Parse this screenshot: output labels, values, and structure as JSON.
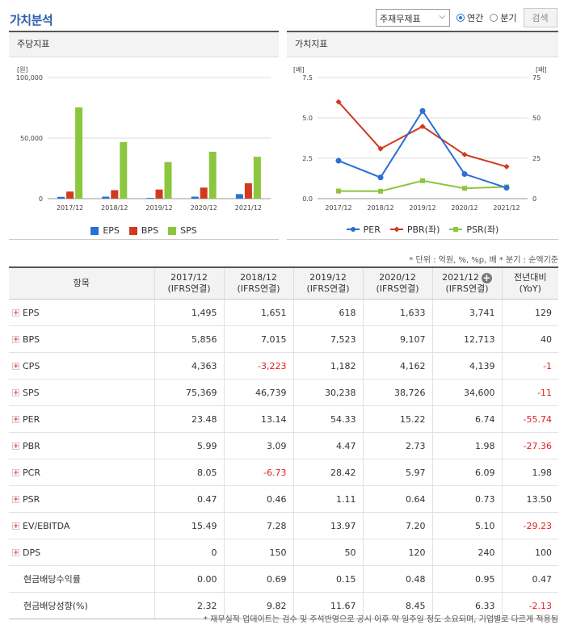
{
  "title": "가치분석",
  "controls": {
    "select_value": "주재무제표",
    "radio_annual": "연간",
    "radio_quarter": "분기",
    "search_label": "검색"
  },
  "left_chart": {
    "heading": "주당지표",
    "unit": "[원]",
    "legend": [
      "EPS",
      "BPS",
      "SPS"
    ]
  },
  "right_chart": {
    "heading": "가치지표",
    "unit_left": "[배]",
    "unit_right": "[배]",
    "legend": [
      "PER",
      "PBR(좌)",
      "PSR(좌)"
    ]
  },
  "colors": {
    "eps": "#2a6fd6",
    "bps": "#d13a1f",
    "sps": "#8cc63f",
    "per": "#2a6fd6",
    "pbr": "#d13a1f",
    "psr": "#8cc63f",
    "title": "#2a5ea8"
  },
  "chart_data": [
    {
      "type": "bar",
      "title": "주당지표",
      "ylabel": "[원]",
      "categories": [
        "2017/12",
        "2018/12",
        "2019/12",
        "2020/12",
        "2021/12"
      ],
      "ylim": [
        0,
        100000
      ],
      "yticks": [
        "100,000",
        "50,000",
        "0"
      ],
      "series": [
        {
          "name": "EPS",
          "values": [
            1495,
            1651,
            618,
            1633,
            3741
          ]
        },
        {
          "name": "BPS",
          "values": [
            5856,
            7015,
            7523,
            9107,
            12713
          ]
        },
        {
          "name": "SPS",
          "values": [
            75369,
            46739,
            30238,
            38726,
            34600
          ]
        }
      ]
    },
    {
      "type": "line",
      "title": "가치지표",
      "categories": [
        "2017/12",
        "2018/12",
        "2019/12",
        "2020/12",
        "2021/12"
      ],
      "ylim_left": [
        0,
        7.5
      ],
      "ylim_right": [
        0,
        75
      ],
      "yticks_left": [
        "7.5",
        "5.0",
        "2.5",
        "0.0"
      ],
      "yticks_right": [
        "75",
        "50",
        "25",
        "0"
      ],
      "series": [
        {
          "name": "PER",
          "axis": "right",
          "values": [
            23.48,
            13.14,
            54.33,
            15.22,
            6.74
          ]
        },
        {
          "name": "PBR(좌)",
          "axis": "left",
          "values": [
            5.99,
            3.09,
            4.47,
            2.73,
            1.98
          ]
        },
        {
          "name": "PSR(좌)",
          "axis": "left",
          "values": [
            0.47,
            0.46,
            1.11,
            0.64,
            0.73
          ]
        }
      ]
    }
  ],
  "table": {
    "note": "* 단위 : 억원, %, %p, 배    * 분기 : 순액기준",
    "headers": {
      "item": "항목",
      "cols": [
        {
          "year": "2017/12",
          "basis": "(IFRS연결)"
        },
        {
          "year": "2018/12",
          "basis": "(IFRS연결)"
        },
        {
          "year": "2019/12",
          "basis": "(IFRS연결)"
        },
        {
          "year": "2020/12",
          "basis": "(IFRS연결)"
        },
        {
          "year": "2021/12",
          "basis": "(IFRS연결)"
        }
      ],
      "yoy_line1": "전년대비",
      "yoy_line2": "(YoY)"
    },
    "rows": [
      {
        "label": "EPS",
        "expand": true,
        "values": [
          "1,495",
          "1,651",
          "618",
          "1,633",
          "3,741"
        ],
        "yoy": "129"
      },
      {
        "label": "BPS",
        "expand": true,
        "values": [
          "5,856",
          "7,015",
          "7,523",
          "9,107",
          "12,713"
        ],
        "yoy": "40"
      },
      {
        "label": "CPS",
        "expand": true,
        "values": [
          "4,363",
          "-3,223",
          "1,182",
          "4,162",
          "4,139"
        ],
        "yoy": "-1"
      },
      {
        "label": "SPS",
        "expand": true,
        "values": [
          "75,369",
          "46,739",
          "30,238",
          "38,726",
          "34,600"
        ],
        "yoy": "-11"
      },
      {
        "label": "PER",
        "expand": true,
        "values": [
          "23.48",
          "13.14",
          "54.33",
          "15.22",
          "6.74"
        ],
        "yoy": "-55.74"
      },
      {
        "label": "PBR",
        "expand": true,
        "values": [
          "5.99",
          "3.09",
          "4.47",
          "2.73",
          "1.98"
        ],
        "yoy": "-27.36"
      },
      {
        "label": "PCR",
        "expand": true,
        "values": [
          "8.05",
          "-6.73",
          "28.42",
          "5.97",
          "6.09"
        ],
        "yoy": "1.98"
      },
      {
        "label": "PSR",
        "expand": true,
        "values": [
          "0.47",
          "0.46",
          "1.11",
          "0.64",
          "0.73"
        ],
        "yoy": "13.50"
      },
      {
        "label": "EV/EBITDA",
        "expand": true,
        "values": [
          "15.49",
          "7.28",
          "13.97",
          "7.20",
          "5.10"
        ],
        "yoy": "-29.23"
      },
      {
        "label": "DPS",
        "expand": true,
        "values": [
          "0",
          "150",
          "50",
          "120",
          "240"
        ],
        "yoy": "100"
      },
      {
        "label": "현금배당수익률",
        "expand": false,
        "values": [
          "0.00",
          "0.69",
          "0.15",
          "0.48",
          "0.95"
        ],
        "yoy": "0.47"
      },
      {
        "label": "현금배당성향(%)",
        "expand": false,
        "values": [
          "2.32",
          "9.82",
          "11.67",
          "8.45",
          "6.33"
        ],
        "yoy": "-2.13"
      }
    ]
  },
  "footnote": "* 재무실적 업데이트는 검수 및 주석반영으로 공시 이후 약 일주일 정도 소요되며, 기업별로 다르게 적용됨"
}
